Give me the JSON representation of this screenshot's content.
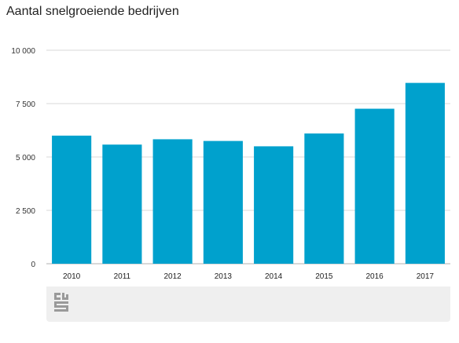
{
  "title": "Aantal snelgroeiende bedrijven",
  "logo_icon": "cbs-logo-icon",
  "colors": {
    "bar": "#00a1cd",
    "grid": "#d9d9d9",
    "axis": "#b0b0b0",
    "footer": "#efefef"
  },
  "chart_data": {
    "type": "bar",
    "title": "Aantal snelgroeiende bedrijven",
    "categories": [
      "2010",
      "2011",
      "2012",
      "2013",
      "2014",
      "2015",
      "2016",
      "2017"
    ],
    "values": [
      6000,
      5580,
      5830,
      5750,
      5500,
      6100,
      7260,
      8470
    ],
    "ylim": [
      0,
      10000
    ],
    "yticks": [
      0,
      2500,
      5000,
      7500,
      10000
    ],
    "ytick_labels": [
      "0",
      "2 500",
      "5 000",
      "7 500",
      "10 000"
    ],
    "grid": true,
    "legend": "none"
  }
}
